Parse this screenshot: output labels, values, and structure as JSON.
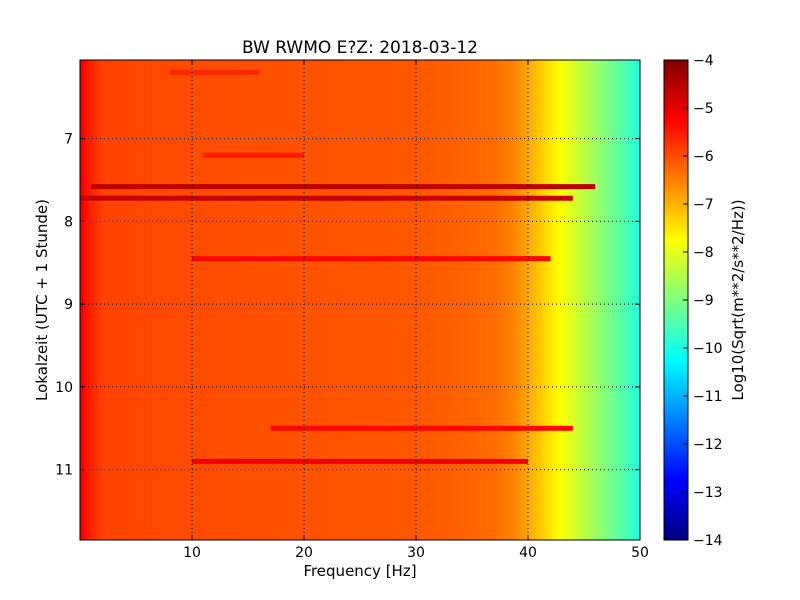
{
  "chart_data": {
    "type": "heatmap",
    "title": "BW RWMO E?Z: 2018-03-12",
    "xlabel": "Frequency [Hz]",
    "ylabel": "Lokalzeit (UTC + 1 Stunde)",
    "xlim": [
      0,
      50
    ],
    "ylim": [
      6.05,
      11.85
    ],
    "x_ticks": [
      10,
      20,
      30,
      40,
      50
    ],
    "x_tick_labels": [
      "10",
      "20",
      "30",
      "40",
      "50"
    ],
    "y_ticks": [
      7,
      8,
      9,
      10,
      11
    ],
    "y_tick_labels": [
      "7",
      "8",
      "9",
      "10",
      "11"
    ],
    "y_inverted": true,
    "grid": true,
    "colorbar": {
      "label": "Log10(Sqrt(m**2/s**2/Hz))",
      "range": [
        -14,
        -4
      ],
      "ticks": [
        -4,
        -5,
        -6,
        -7,
        -8,
        -9,
        -10,
        -11,
        -12,
        -13,
        -14
      ],
      "tick_labels": [
        "−4",
        "−5",
        "−6",
        "−7",
        "−8",
        "−9",
        "−10",
        "−11",
        "−12",
        "−13",
        "−14"
      ]
    },
    "spectral_profile": [
      {
        "freq": 0,
        "value": -5.0
      },
      {
        "freq": 0.5,
        "value": -5.4
      },
      {
        "freq": 2,
        "value": -5.9
      },
      {
        "freq": 10,
        "value": -6.0
      },
      {
        "freq": 30,
        "value": -6.1
      },
      {
        "freq": 37,
        "value": -6.3
      },
      {
        "freq": 39,
        "value": -6.6
      },
      {
        "freq": 41,
        "value": -7.2
      },
      {
        "freq": 43,
        "value": -7.8
      },
      {
        "freq": 45,
        "value": -8.4
      },
      {
        "freq": 47,
        "value": -9.0
      },
      {
        "freq": 49,
        "value": -9.6
      },
      {
        "freq": 50,
        "value": -10.0
      }
    ],
    "bands": [
      {
        "time": 7.58,
        "f_start": 1,
        "f_end": 46,
        "value": -4.6
      },
      {
        "time": 7.72,
        "f_start": 0,
        "f_end": 44,
        "value": -4.7
      },
      {
        "time": 8.45,
        "f_start": 10,
        "f_end": 42,
        "value": -5.3
      },
      {
        "time": 10.5,
        "f_start": 17,
        "f_end": 44,
        "value": -5.3
      },
      {
        "time": 10.9,
        "f_start": 10,
        "f_end": 40,
        "value": -5.1
      },
      {
        "time": 6.2,
        "f_start": 8,
        "f_end": 16,
        "value": -5.6
      },
      {
        "time": 7.2,
        "f_start": 11,
        "f_end": 20,
        "value": -5.5
      }
    ]
  }
}
